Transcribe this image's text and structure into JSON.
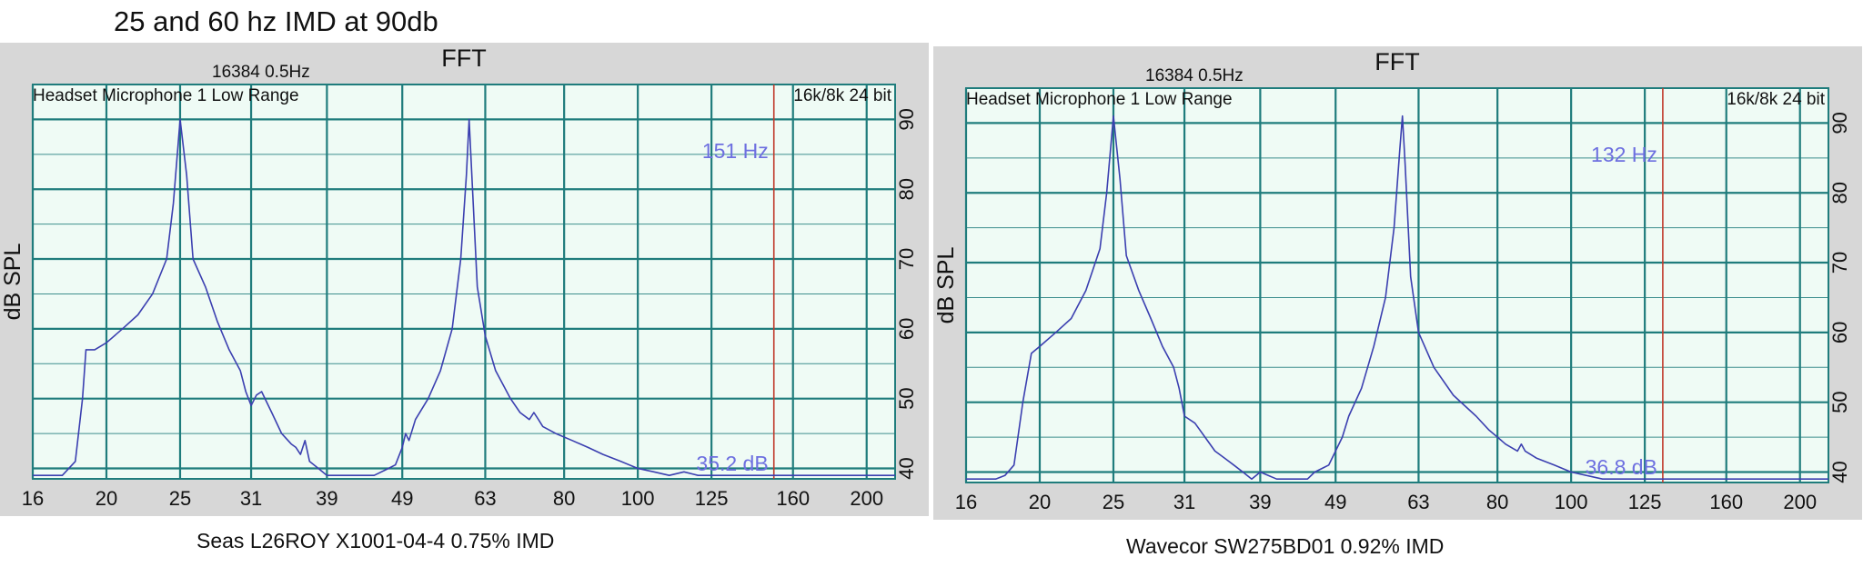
{
  "figure_title": "25 and 60 hz IMD at 90db",
  "chart_data": [
    {
      "type": "line",
      "title": "FFT",
      "fft_info": "16384  0.5Hz",
      "device": "Headset Microphone 1 Low Range",
      "format": "16k/8k 24 bit",
      "ylabel": "dB SPL",
      "xscale": "log",
      "xlim": [
        16,
        218
      ],
      "ylim": [
        38.5,
        95
      ],
      "x_ticks": [
        "16",
        "20",
        "25",
        "31",
        "39",
        "49",
        "63",
        "80",
        "100",
        "125",
        "160",
        "200"
      ],
      "y_ticks": [
        "40",
        "50",
        "60",
        "70",
        "80",
        "90"
      ],
      "grid": true,
      "cursor_freq_label": "151 Hz",
      "cursor_level_label": "35.2 dB",
      "cursor_freq": 151,
      "caption": "Seas L26ROY X1001-04-4 0.75% IMD",
      "series": [
        {
          "x": [
            16,
            17.5,
            18.2,
            18.6,
            18.8,
            19.3,
            20,
            21,
            22,
            23,
            24,
            24.5,
            25,
            25.5,
            26,
            27,
            28,
            29,
            30,
            30.5,
            31,
            31.5,
            32,
            33,
            34,
            35,
            35.5,
            36,
            36.5,
            37,
            38,
            39,
            41,
            43,
            45,
            47,
            48,
            49,
            49.5,
            50,
            51,
            53,
            55,
            57,
            58.5,
            59.5,
            60,
            60.5,
            61.5,
            63,
            65,
            68,
            70,
            72,
            73,
            74,
            75,
            78,
            82,
            86,
            90,
            95,
            100,
            105,
            110,
            115,
            120,
            130,
            150,
            200,
            218
          ],
          "y": [
            39,
            39,
            41,
            50,
            57,
            57,
            58,
            60,
            62,
            65,
            70,
            78,
            90,
            82,
            70,
            66,
            61,
            57,
            54,
            51,
            49,
            50.5,
            51,
            48,
            45,
            43.5,
            43,
            42,
            44,
            41,
            40,
            39,
            39,
            39,
            39,
            40,
            40.5,
            43,
            45,
            44,
            47,
            50,
            54,
            60,
            70,
            82,
            90,
            82,
            66,
            59,
            54,
            50,
            48,
            47,
            48,
            47,
            46,
            45,
            44,
            43,
            42,
            41,
            40,
            39.5,
            39,
            39.5,
            39,
            39,
            39,
            39,
            39
          ]
        }
      ]
    },
    {
      "type": "line",
      "title": "FFT",
      "fft_info": "16384  0.5Hz",
      "device": "Headset Microphone 1 Low Range",
      "format": "16k/8k 24 bit",
      "ylabel": "dB SPL",
      "xscale": "log",
      "xlim": [
        16,
        218
      ],
      "ylim": [
        38.5,
        95
      ],
      "x_ticks": [
        "16",
        "20",
        "25",
        "31",
        "39",
        "49",
        "63",
        "80",
        "100",
        "125",
        "160",
        "200"
      ],
      "y_ticks": [
        "40",
        "50",
        "60",
        "70",
        "80",
        "90"
      ],
      "grid": true,
      "cursor_freq_label": "132 Hz",
      "cursor_level_label": "36.8 dB",
      "cursor_freq": 132,
      "caption": "Wavecor SW275BD01 0.92% IMD",
      "series": [
        {
          "x": [
            16,
            17.5,
            18,
            18.5,
            19,
            19.5,
            20,
            21,
            22,
            23,
            24,
            24.5,
            25,
            25.5,
            26,
            27,
            28,
            29,
            30,
            30.5,
            31,
            32,
            33,
            34,
            35,
            36,
            37,
            38,
            39,
            41,
            43,
            45,
            46,
            47,
            48,
            49,
            50,
            51,
            53,
            55,
            57,
            58.5,
            59.5,
            60,
            60.5,
            61.5,
            63,
            66,
            70,
            75,
            78,
            80,
            82,
            85,
            86,
            87,
            90,
            95,
            100,
            110,
            118,
            120,
            125,
            130,
            150,
            200,
            218
          ],
          "y": [
            39,
            39,
            39.5,
            41,
            50,
            57,
            58,
            60,
            62,
            66,
            72,
            80,
            91,
            82,
            71,
            66,
            62,
            58,
            55,
            52,
            48,
            47,
            45,
            43,
            42,
            41,
            40,
            39,
            40,
            39,
            39,
            39,
            40,
            40.5,
            41,
            43,
            45,
            48,
            52,
            58,
            65,
            75,
            86,
            91,
            84,
            68,
            60,
            55,
            51,
            48,
            46,
            45,
            44,
            43,
            44,
            43,
            42,
            41,
            40,
            39,
            39,
            39,
            39,
            39,
            39,
            39,
            39
          ]
        }
      ]
    }
  ]
}
